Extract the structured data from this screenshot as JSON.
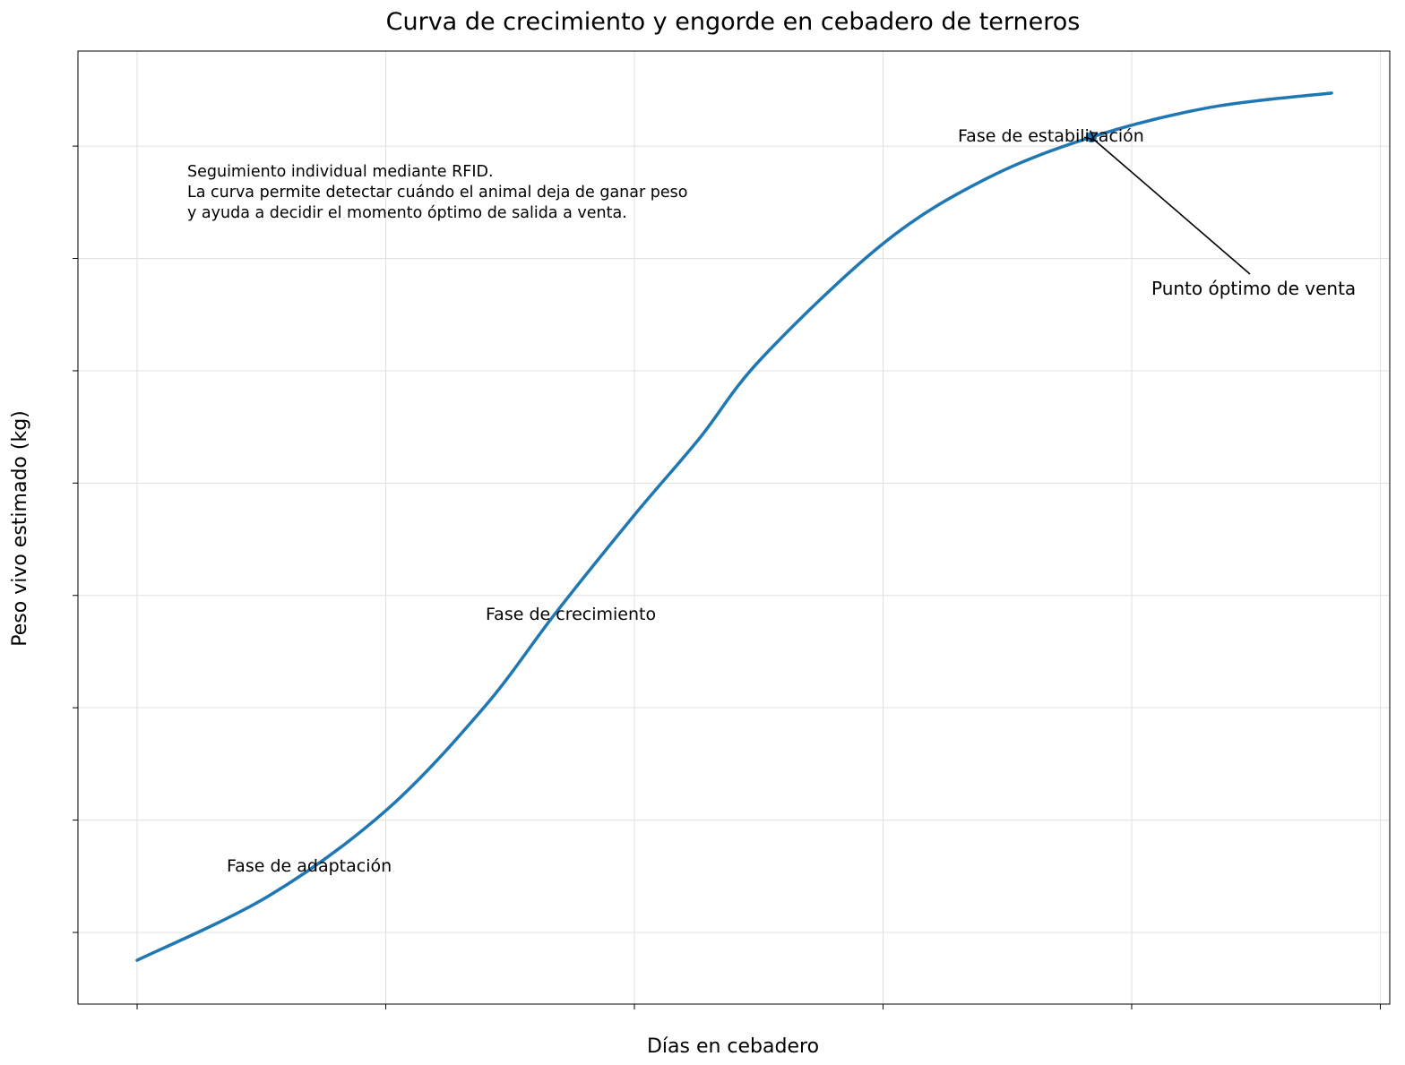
{
  "chart_data": {
    "type": "line",
    "title": "Curva de crecimiento y engorde en cebadero de terneros",
    "xlabel": "Días en cebadero",
    "ylabel": "Peso vivo estimado (kg)",
    "xlim": [
      -11.9,
      251.9
    ],
    "ylim": [
      218.1,
      642.3
    ],
    "x_ticks": [
      0,
      50,
      100,
      150,
      200,
      250
    ],
    "y_ticks": [
      250,
      300,
      350,
      400,
      450,
      500,
      550,
      600
    ],
    "tick_labels_visible": false,
    "grid": true,
    "series": [
      {
        "color": "#1f77b4",
        "x": [
          0,
          26.5,
          50,
          69.7,
          84.1,
          100,
          113,
          125.6,
          150,
          170.6,
          191.9,
          215.7,
          240.2
        ],
        "y": [
          237.6,
          266.3,
          304.2,
          350,
          392,
          435.8,
          469.7,
          505.6,
          556.6,
          585.3,
          604,
          617.2,
          623.6
        ]
      }
    ],
    "marker": {
      "x": 191.9,
      "y": 604,
      "color": "#1f77b4"
    },
    "annotations": {
      "adaptacion": "Fase de adaptación",
      "crecimiento": "Fase de crecimiento",
      "estabilizacion": "Fase de estabilización",
      "venta": "Punto óptimo de venta",
      "info": [
        "Seguimiento individual mediante RFID.",
        "La curva permite detectar cuándo el animal deja de ganar peso",
        "y ayuda a decidir el momento óptimo de salida a venta."
      ]
    }
  }
}
